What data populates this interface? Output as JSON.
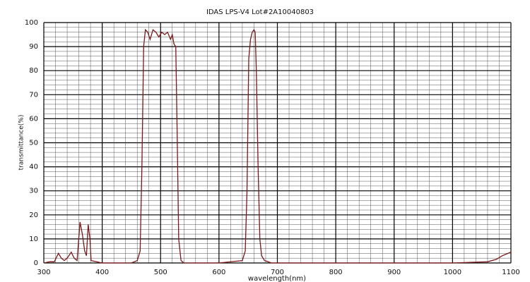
{
  "chart_data": {
    "type": "line",
    "title": "IDAS LPS-V4 Lot#2A10040803",
    "x_label": "wavelength(nm)",
    "y_label": "transmittance(%)",
    "x": [
      300,
      310,
      318,
      325,
      330,
      335,
      340,
      347,
      352,
      357,
      362,
      366,
      370,
      373,
      376,
      379,
      381,
      390,
      400,
      450,
      460,
      465,
      468,
      471,
      474,
      478,
      482,
      487,
      492,
      497,
      502,
      507,
      512,
      517,
      520,
      523,
      526,
      528,
      531,
      535,
      540,
      600,
      640,
      645,
      648,
      651,
      654,
      657,
      660,
      662,
      664,
      667,
      670,
      673,
      678,
      690,
      850,
      1000,
      1060,
      1075,
      1085,
      1095,
      1100
    ],
    "series": [
      {
        "color": "#7a1a1a",
        "values": [
          0,
          0.5,
          0.5,
          4,
          2,
          1,
          2,
          4.5,
          2,
          1,
          17,
          12,
          5,
          3,
          16,
          10,
          1,
          0.5,
          0,
          0,
          1,
          5,
          40,
          90,
          97,
          96,
          93,
          97,
          96,
          94,
          96,
          95,
          96,
          93,
          95,
          91,
          90,
          60,
          10,
          1,
          0,
          0,
          1,
          5,
          30,
          85,
          93,
          96,
          97,
          96,
          80,
          40,
          10,
          3,
          1,
          0,
          0,
          0,
          0.5,
          1.5,
          3,
          4,
          4.5
        ]
      }
    ],
    "xlim": [
      300,
      1100
    ],
    "ylim": [
      0,
      100
    ],
    "xticks": [
      300,
      400,
      500,
      600,
      700,
      800,
      900,
      1000,
      1100
    ],
    "yticks": [
      0,
      10,
      20,
      30,
      40,
      50,
      60,
      70,
      80,
      90,
      100
    ],
    "grid": true,
    "grid_minor_divisions": 5
  }
}
